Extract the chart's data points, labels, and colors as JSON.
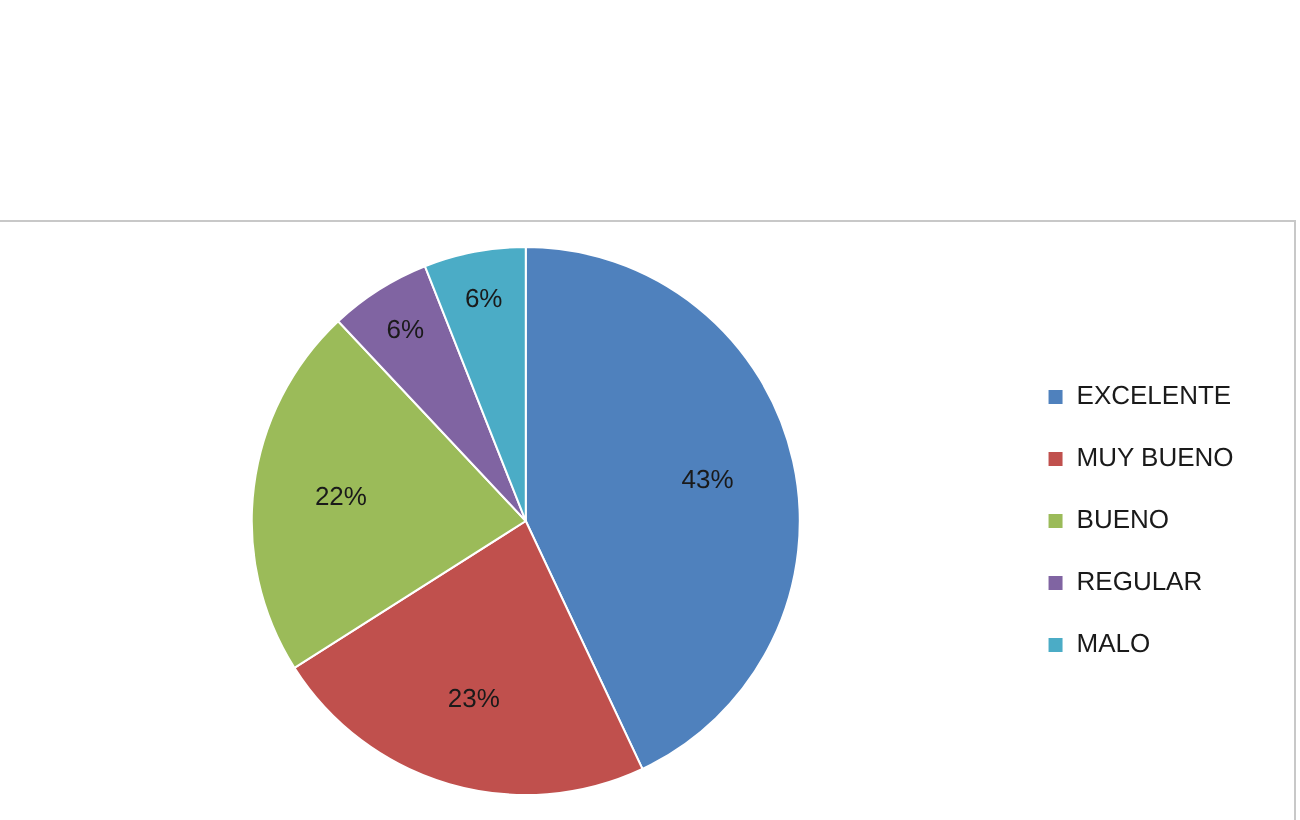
{
  "chart_data": {
    "type": "pie",
    "categories": [
      "EXCELENTE",
      "MUY BUENO",
      "BUENO",
      "REGULAR",
      "MALO"
    ],
    "values": [
      43,
      23,
      22,
      6,
      6
    ],
    "colors": [
      "#4f81bd",
      "#c0504d",
      "#9bbb59",
      "#8064a2",
      "#4bacc6"
    ],
    "value_labels": [
      "43%",
      "23%",
      "22%",
      "6%",
      "6%"
    ],
    "legend": "right"
  }
}
